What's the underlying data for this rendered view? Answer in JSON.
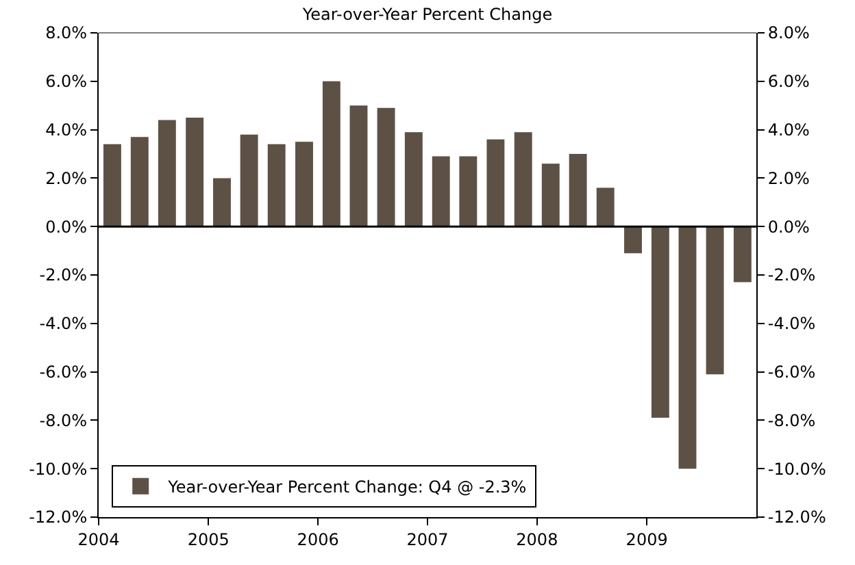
{
  "chart_data": {
    "type": "bar",
    "title": "Year-over-Year Percent Change",
    "x": [
      "2004-02-15",
      "2004-05-15",
      "2004-08-15",
      "2004-11-15",
      "2005-02-15",
      "2005-05-15",
      "2005-08-15",
      "2005-11-15",
      "2006-02-15",
      "2006-05-15",
      "2006-08-15",
      "2006-11-15",
      "2007-02-15",
      "2007-05-15",
      "2007-08-15",
      "2007-11-15",
      "2008-02-15",
      "2008-05-15",
      "2008-08-15",
      "2008-11-15",
      "2009-02-15",
      "2009-05-15",
      "2009-08-15",
      "2009-11-15"
    ],
    "series": [
      {
        "name": "Year-over-Year Percent Change: Q4 @ -2.3%",
        "color": "#5d5145",
        "values": [
          3.4,
          3.7,
          4.4,
          4.5,
          2.0,
          3.8,
          3.4,
          3.5,
          6.0,
          5.0,
          4.9,
          3.9,
          2.9,
          2.9,
          3.6,
          3.9,
          2.6,
          3.0,
          1.6,
          -1.1,
          -7.9,
          -10.0,
          -6.1,
          -2.3
        ]
      }
    ],
    "xlim": [
      "2004-01-01",
      "2010-01-01"
    ],
    "xticks": [
      {
        "value": "2004-01-01",
        "label": "2004"
      },
      {
        "value": "2005-01-01",
        "label": "2005"
      },
      {
        "value": "2006-01-01",
        "label": "2006"
      },
      {
        "value": "2007-01-01",
        "label": "2007"
      },
      {
        "value": "2008-01-01",
        "label": "2008"
      },
      {
        "value": "2009-01-01",
        "label": "2009"
      }
    ],
    "ylim": [
      -12,
      8
    ],
    "yticks": [
      {
        "value": -12,
        "label": "-12.0%"
      },
      {
        "value": -10,
        "label": "-10.0%"
      },
      {
        "value": -8,
        "label": "-8.0%"
      },
      {
        "value": -6,
        "label": "-6.0%"
      },
      {
        "value": -4,
        "label": "-4.0%"
      },
      {
        "value": -2,
        "label": "-2.0%"
      },
      {
        "value": 0,
        "label": "0.0%"
      },
      {
        "value": 2,
        "label": "2.0%"
      },
      {
        "value": 4,
        "label": "4.0%"
      },
      {
        "value": 6,
        "label": "6.0%"
      },
      {
        "value": 8,
        "label": "8.0%"
      }
    ],
    "y2lim": [
      -12,
      8
    ],
    "y2ticks": [
      {
        "value": -12,
        "label": "-12.0%"
      },
      {
        "value": -10,
        "label": "-10.0%"
      },
      {
        "value": -8,
        "label": "-8.0%"
      },
      {
        "value": -6,
        "label": "-6.0%"
      },
      {
        "value": -4,
        "label": "-4.0%"
      },
      {
        "value": -2,
        "label": "-2.0%"
      },
      {
        "value": 0,
        "label": "0.0%"
      },
      {
        "value": 2,
        "label": "2.0%"
      },
      {
        "value": 4,
        "label": "4.0%"
      },
      {
        "value": 6,
        "label": "6.0%"
      },
      {
        "value": 8,
        "label": "8.0%"
      }
    ],
    "ref_lines": [
      {
        "axis": "y",
        "value": 0,
        "color": "#000000"
      }
    ],
    "legend": "bottom left"
  }
}
